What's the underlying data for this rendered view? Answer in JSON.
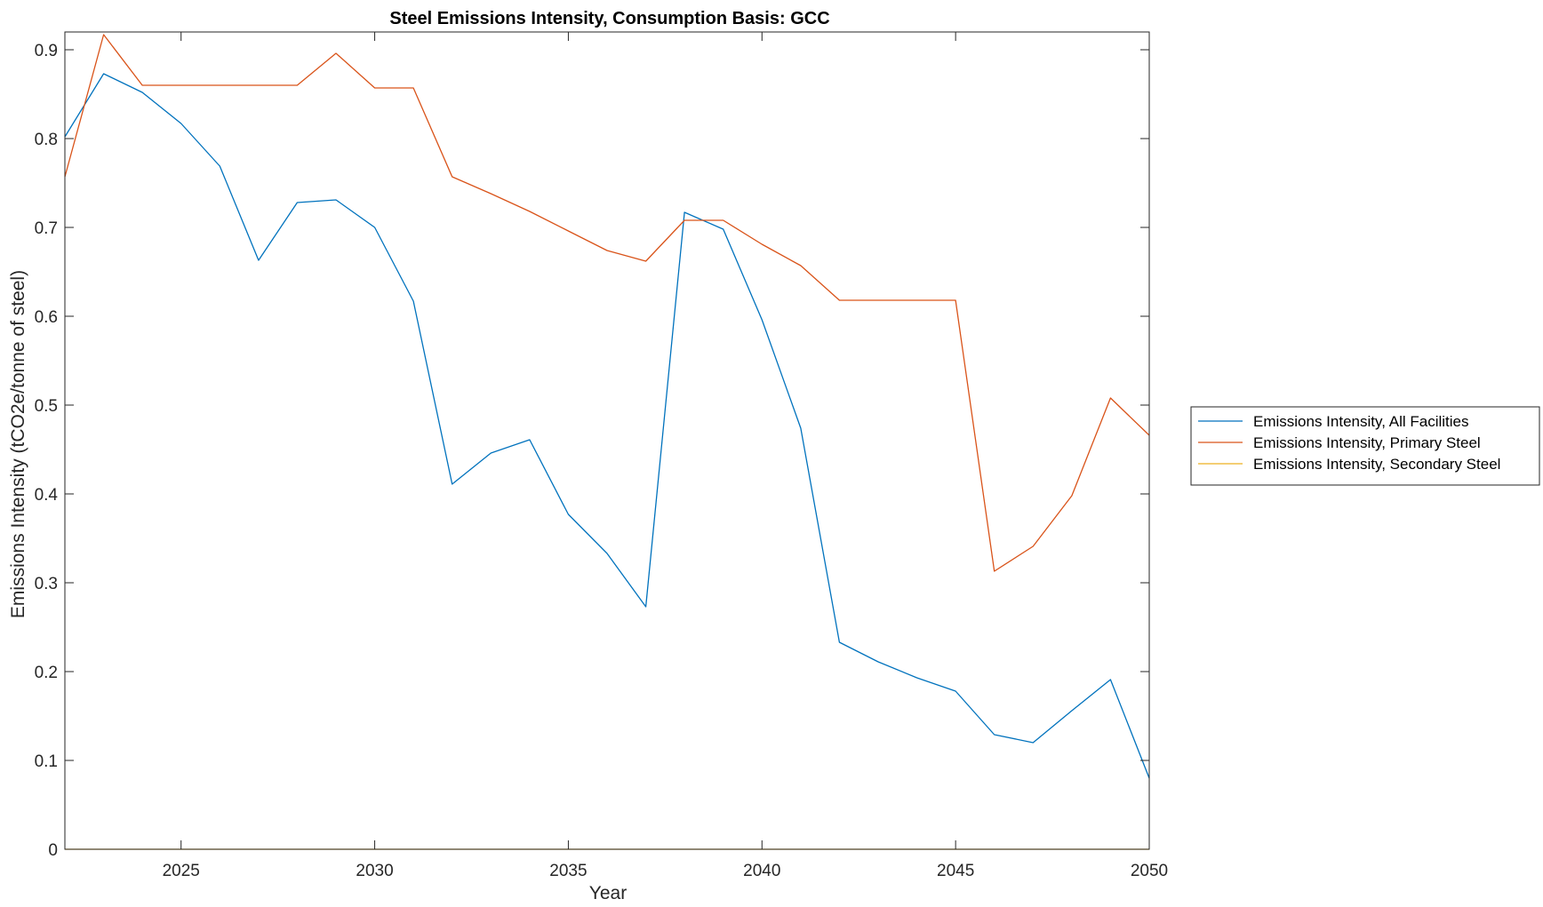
{
  "chart_data": {
    "type": "line",
    "title": "Steel Emissions Intensity, Consumption Basis: GCC",
    "xlabel": "Year",
    "ylabel": "Emissions Intensity (tCO2e/tonne of steel)",
    "xlim": [
      2022,
      2050
    ],
    "ylim": [
      0,
      0.92
    ],
    "xticks": [
      2025,
      2030,
      2035,
      2040,
      2045,
      2050
    ],
    "yticks": [
      0,
      0.1,
      0.2,
      0.3,
      0.4,
      0.5,
      0.6,
      0.7,
      0.8,
      0.9
    ],
    "xtick_labels": [
      "2025",
      "2030",
      "2035",
      "2040",
      "2045",
      "2050"
    ],
    "ytick_labels": [
      "0",
      "0.1",
      "0.2",
      "0.3",
      "0.4",
      "0.5",
      "0.6",
      "0.7",
      "0.8",
      "0.9"
    ],
    "grid": false,
    "legend_position": "outside-right",
    "x": [
      2022,
      2023,
      2024,
      2025,
      2026,
      2027,
      2028,
      2029,
      2030,
      2031,
      2032,
      2033,
      2034,
      2035,
      2036,
      2037,
      2038,
      2039,
      2040,
      2041,
      2042,
      2043,
      2044,
      2045,
      2046,
      2047,
      2048,
      2049,
      2050
    ],
    "series": [
      {
        "name": "Emissions Intensity, All Facilities",
        "color": "#0072BD",
        "values": [
          0.802,
          0.873,
          0.852,
          0.817,
          0.769,
          0.663,
          0.728,
          0.731,
          0.7,
          0.617,
          0.411,
          0.446,
          0.461,
          0.377,
          0.333,
          0.273,
          0.717,
          0.698,
          0.596,
          0.474,
          0.233,
          0.211,
          0.193,
          0.178,
          0.129,
          0.12,
          0.156,
          0.191,
          0.08
        ]
      },
      {
        "name": "Emissions Intensity, Primary Steel",
        "color": "#D95319",
        "values": [
          0.757,
          0.917,
          0.86,
          0.86,
          0.86,
          0.86,
          0.86,
          0.896,
          0.857,
          0.857,
          0.757,
          0.738,
          0.718,
          0.696,
          0.674,
          0.662,
          0.708,
          0.708,
          0.681,
          0.657,
          0.618,
          0.618,
          0.618,
          0.618,
          0.313,
          0.341,
          0.398,
          0.508,
          0.466
        ]
      },
      {
        "name": "Emissions Intensity, Secondary Steel",
        "color": "#EDB120",
        "values": [
          0,
          0,
          0,
          0,
          0,
          0,
          0,
          0,
          0,
          0,
          0,
          0,
          0,
          0,
          0,
          0,
          0,
          0,
          0,
          0,
          0,
          0,
          0,
          0,
          0,
          0,
          0,
          0,
          0
        ]
      }
    ]
  }
}
